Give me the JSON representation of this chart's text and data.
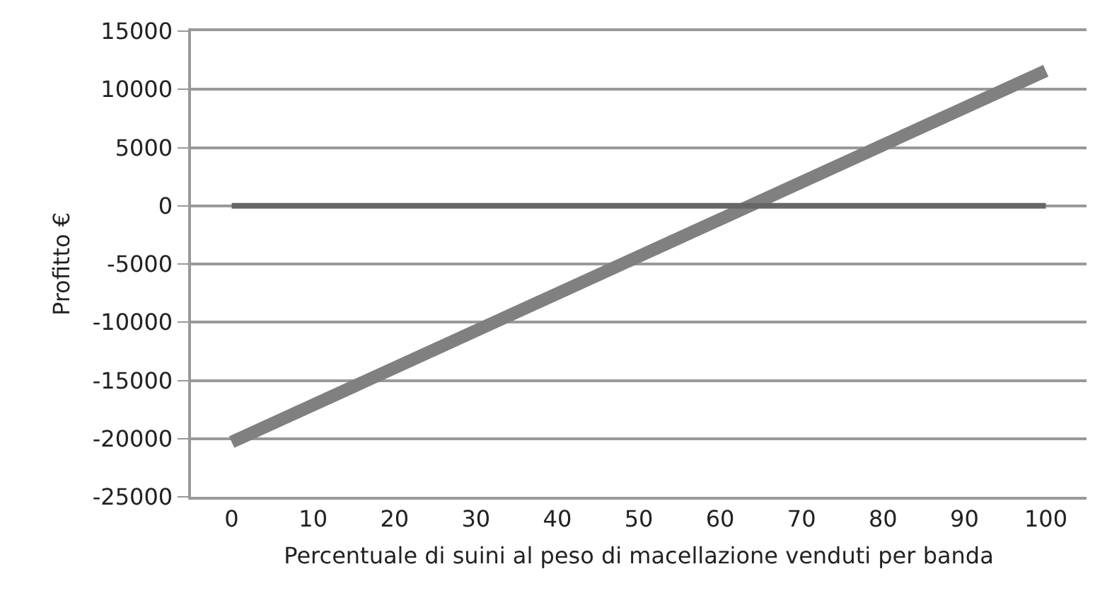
{
  "chart_data": {
    "type": "line",
    "xlabel": "Percentuale di suini al peso di macellazione venduti per banda",
    "ylabel": "Profitto €",
    "x": [
      0,
      100
    ],
    "series": [
      {
        "color": "#808080",
        "values": [
          -20300,
          11600
        ]
      },
      {
        "color": "#666666",
        "values": [
          0,
          0
        ]
      }
    ],
    "xlim": [
      -5,
      105
    ],
    "xticks": [
      0,
      10,
      20,
      30,
      40,
      50,
      60,
      70,
      80,
      90,
      100
    ],
    "ylim": [
      -25000,
      15000
    ],
    "yticks": [
      -25000,
      -20000,
      -15000,
      -10000,
      -5000,
      0,
      5000,
      10000,
      15000
    ],
    "grid": "y",
    "marker": "none",
    "line_style": "solid"
  }
}
